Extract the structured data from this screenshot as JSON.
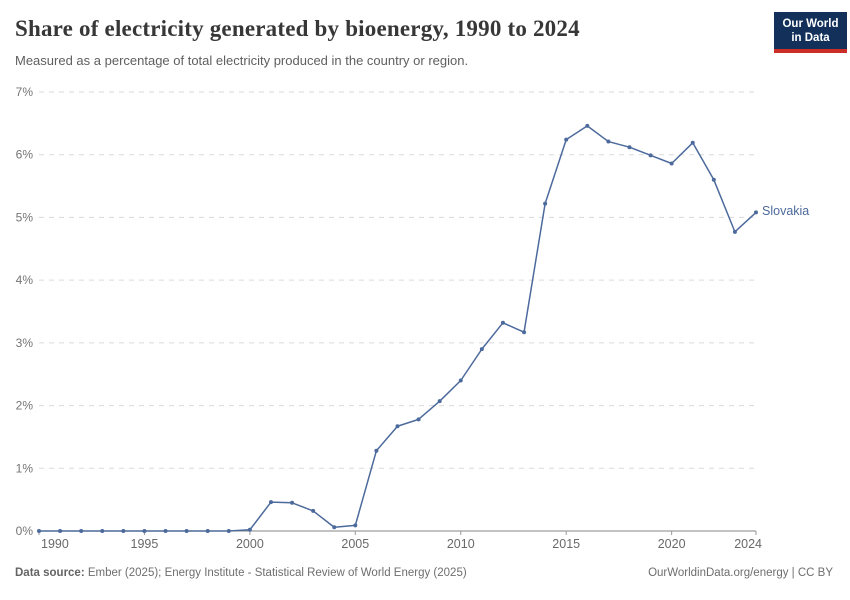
{
  "chart_data": {
    "type": "line",
    "title": "Share of electricity generated by bioenergy, 1990 to 2024",
    "subtitle": "Measured as a percentage of total electricity produced in the country or region.",
    "entity": "Slovakia",
    "unit": "%",
    "line_color": "#4C6A9C",
    "grid": true,
    "xlim": [
      1990,
      2024
    ],
    "ylim": [
      0,
      7
    ],
    "x_ticks": [
      1990,
      1995,
      2000,
      2005,
      2010,
      2015,
      2020,
      2024
    ],
    "y_ticks": [
      0,
      1,
      2,
      3,
      4,
      5,
      6,
      7
    ],
    "y_tick_suffix": "%",
    "x": [
      1990,
      1991,
      1992,
      1993,
      1994,
      1995,
      1996,
      1997,
      1998,
      1999,
      2000,
      2001,
      2002,
      2003,
      2004,
      2005,
      2006,
      2007,
      2008,
      2009,
      2010,
      2011,
      2012,
      2013,
      2014,
      2015,
      2016,
      2017,
      2018,
      2019,
      2020,
      2021,
      2022,
      2023,
      2024
    ],
    "series": [
      {
        "name": "Slovakia",
        "values": [
          0,
          0,
          0,
          0,
          0,
          0,
          0,
          0,
          0,
          0,
          0.02,
          0.46,
          0.45,
          0.32,
          0.06,
          0.09,
          1.28,
          1.67,
          1.78,
          2.07,
          2.4,
          2.9,
          3.32,
          3.17,
          5.22,
          6.24,
          6.46,
          6.21,
          6.12,
          5.99,
          5.86,
          6.19,
          5.6,
          4.77,
          5.08
        ]
      }
    ],
    "legend_position": "right-of-line-end"
  },
  "logo": {
    "line1": "Our World",
    "line2": "in Data",
    "bg_color": "#12305a",
    "accent_color": "#cb2d27"
  },
  "footer": {
    "source_label": "Data source:",
    "source_text": " Ember (2025); Energy Institute - Statistical Review of World Energy (2025)",
    "credit": "OurWorldinData.org/energy | CC BY"
  },
  "colors": {
    "gridline": "#dadada",
    "axis": "#858585",
    "tick": "#9a9a9a"
  }
}
